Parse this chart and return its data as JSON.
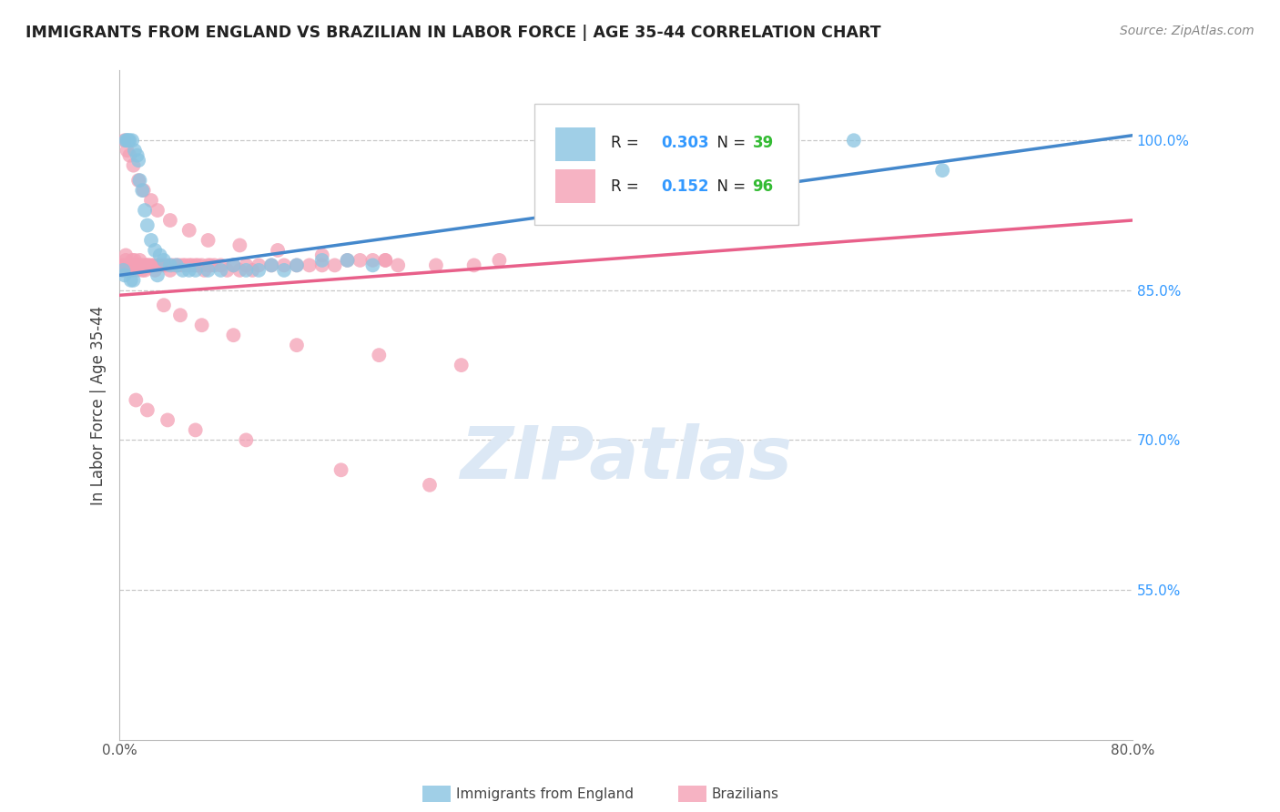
{
  "title": "IMMIGRANTS FROM ENGLAND VS BRAZILIAN IN LABOR FORCE | AGE 35-44 CORRELATION CHART",
  "source": "Source: ZipAtlas.com",
  "ylabel": "In Labor Force | Age 35-44",
  "xlim": [
    0.0,
    80.0
  ],
  "ylim": [
    40.0,
    107.0
  ],
  "yticks": [
    55.0,
    70.0,
    85.0,
    100.0
  ],
  "ytick_labels": [
    "55.0%",
    "70.0%",
    "85.0%",
    "100.0%"
  ],
  "grid_color": "#c8c8c8",
  "watermark": "ZIPatlas",
  "watermark_color": "#dce8f5",
  "england_color": "#89c4e1",
  "brazil_color": "#f4a0b5",
  "england_R": 0.303,
  "england_N": 39,
  "brazil_R": 0.152,
  "brazil_N": 96,
  "england_line_color": "#4488cc",
  "brazil_line_color": "#e8608a",
  "legend_R_color": "#3399ff",
  "legend_N_color": "#33bb33",
  "england_line_x0": 0.0,
  "england_line_y0": 86.5,
  "england_line_x1": 80.0,
  "england_line_y1": 100.5,
  "brazil_line_x0": 0.0,
  "brazil_line_y0": 84.5,
  "brazil_line_x1": 80.0,
  "brazil_line_y1": 92.0,
  "england_scatter_x": [
    0.3,
    0.5,
    0.6,
    0.7,
    0.8,
    1.0,
    1.2,
    1.4,
    1.5,
    1.6,
    1.8,
    2.0,
    2.2,
    2.5,
    2.8,
    3.2,
    3.5,
    4.0,
    4.5,
    5.0,
    5.5,
    6.0,
    7.0,
    8.0,
    9.0,
    10.0,
    11.0,
    12.0,
    13.0,
    14.0,
    16.0,
    18.0,
    20.0,
    58.0,
    65.0,
    0.4,
    0.9,
    1.1,
    3.0
  ],
  "england_scatter_y": [
    87.0,
    100.0,
    100.0,
    100.0,
    100.0,
    100.0,
    99.0,
    98.5,
    98.0,
    96.0,
    95.0,
    93.0,
    91.5,
    90.0,
    89.0,
    88.5,
    88.0,
    87.5,
    87.5,
    87.0,
    87.0,
    87.0,
    87.0,
    87.0,
    87.5,
    87.0,
    87.0,
    87.5,
    87.0,
    87.5,
    88.0,
    88.0,
    87.5,
    100.0,
    97.0,
    86.5,
    86.0,
    86.0,
    86.5
  ],
  "brazil_scatter_x": [
    0.2,
    0.3,
    0.4,
    0.5,
    0.5,
    0.6,
    0.7,
    0.8,
    0.9,
    1.0,
    1.0,
    1.1,
    1.2,
    1.3,
    1.4,
    1.5,
    1.6,
    1.7,
    1.8,
    1.9,
    2.0,
    2.1,
    2.2,
    2.3,
    2.5,
    2.7,
    2.8,
    3.0,
    3.2,
    3.5,
    3.7,
    4.0,
    4.2,
    4.5,
    4.7,
    5.0,
    5.2,
    5.5,
    5.7,
    6.0,
    6.2,
    6.5,
    6.7,
    7.0,
    7.2,
    7.5,
    8.0,
    8.5,
    9.0,
    9.5,
    10.0,
    10.5,
    11.0,
    12.0,
    13.0,
    14.0,
    15.0,
    16.0,
    17.0,
    18.0,
    19.0,
    20.0,
    21.0,
    22.0,
    25.0,
    28.0,
    30.0,
    0.4,
    0.6,
    0.8,
    1.1,
    1.5,
    1.9,
    2.5,
    3.0,
    4.0,
    5.5,
    7.0,
    9.5,
    12.5,
    16.0,
    21.0,
    3.5,
    4.8,
    6.5,
    9.0,
    14.0,
    20.5,
    27.0,
    1.3,
    2.2,
    3.8,
    6.0,
    10.0,
    17.5,
    24.5
  ],
  "brazil_scatter_y": [
    87.5,
    87.0,
    87.5,
    88.0,
    88.5,
    87.5,
    87.0,
    87.5,
    87.5,
    88.0,
    87.0,
    87.5,
    88.0,
    87.5,
    87.0,
    87.5,
    88.0,
    87.5,
    87.0,
    87.5,
    87.0,
    87.5,
    87.5,
    87.5,
    87.5,
    87.5,
    87.0,
    87.5,
    87.5,
    87.5,
    87.5,
    87.0,
    87.5,
    87.5,
    87.5,
    87.5,
    87.5,
    87.5,
    87.5,
    87.5,
    87.5,
    87.5,
    87.0,
    87.5,
    87.5,
    87.5,
    87.5,
    87.0,
    87.5,
    87.0,
    87.5,
    87.0,
    87.5,
    87.5,
    87.5,
    87.5,
    87.5,
    87.5,
    87.5,
    88.0,
    88.0,
    88.0,
    88.0,
    87.5,
    87.5,
    87.5,
    88.0,
    100.0,
    99.0,
    98.5,
    97.5,
    96.0,
    95.0,
    94.0,
    93.0,
    92.0,
    91.0,
    90.0,
    89.5,
    89.0,
    88.5,
    88.0,
    83.5,
    82.5,
    81.5,
    80.5,
    79.5,
    78.5,
    77.5,
    74.0,
    73.0,
    72.0,
    71.0,
    70.0,
    67.0,
    65.5
  ]
}
